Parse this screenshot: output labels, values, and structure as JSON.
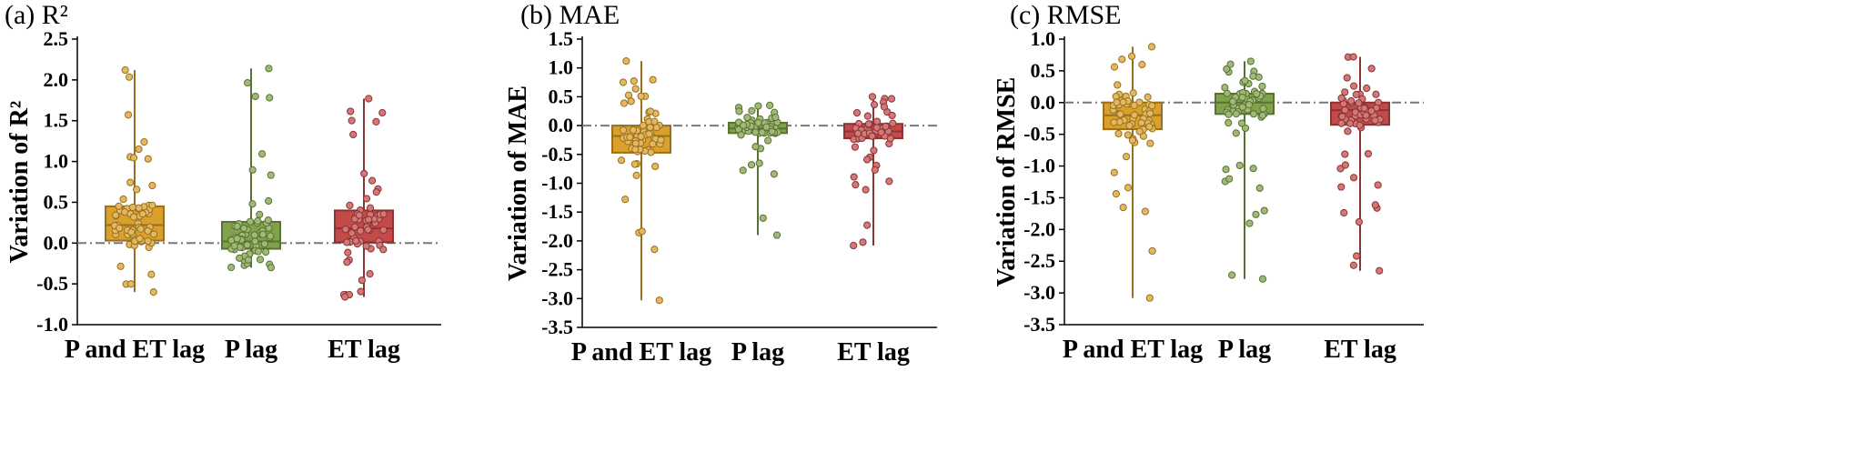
{
  "chart_data": [
    {
      "type": "box",
      "panel_label": "(a) R²",
      "ylabel": "Variation of R²",
      "ylim": [
        -1.0,
        2.5
      ],
      "yticks": [
        "-1.0",
        "-0.5",
        "0.0",
        "0.5",
        "1.0",
        "1.5",
        "2.0",
        "2.5"
      ],
      "categories": [
        "P and ET lag",
        "P lag",
        "ET lag"
      ],
      "reference_line": 0,
      "boxes": [
        {
          "category": "P and ET lag",
          "min": -0.6,
          "q1": 0.03,
          "median": 0.22,
          "q3": 0.45,
          "max": 2.12,
          "color": "#D9A02C"
        },
        {
          "category": "P lag",
          "min": -0.3,
          "q1": -0.07,
          "median": 0.02,
          "q3": 0.26,
          "max": 2.14,
          "color": "#7FA24A"
        },
        {
          "category": "ET lag",
          "min": -0.66,
          "q1": 0.01,
          "median": 0.18,
          "q3": 0.4,
          "max": 1.77,
          "color": "#C44A4A"
        }
      ]
    },
    {
      "type": "box",
      "panel_label": "(b) MAE",
      "ylabel": "Variation of MAE",
      "ylim": [
        -3.5,
        1.5
      ],
      "yticks": [
        "-3.5",
        "-3.0",
        "-2.5",
        "-2.0",
        "-1.5",
        "-1.0",
        "-0.5",
        "0.0",
        "0.5",
        "1.0",
        "1.5"
      ],
      "categories": [
        "P and ET lag",
        "P lag",
        "ET lag"
      ],
      "reference_line": 0,
      "boxes": [
        {
          "category": "P and ET lag",
          "min": -3.03,
          "q1": -0.47,
          "median": -0.18,
          "q3": 0.0,
          "max": 1.12,
          "color": "#D9A02C"
        },
        {
          "category": "P lag",
          "min": -1.9,
          "q1": -0.13,
          "median": -0.05,
          "q3": 0.05,
          "max": 0.35,
          "color": "#7FA24A"
        },
        {
          "category": "ET lag",
          "min": -2.08,
          "q1": -0.22,
          "median": -0.1,
          "q3": 0.03,
          "max": 0.5,
          "color": "#C44A4A"
        }
      ]
    },
    {
      "type": "box",
      "panel_label": "(c) RMSE",
      "ylabel": "Variation of RMSE",
      "ylim": [
        -3.5,
        1.0
      ],
      "yticks": [
        "-3.5",
        "-3.0",
        "-2.5",
        "-2.0",
        "-1.5",
        "-1.0",
        "-0.5",
        "0.0",
        "0.5",
        "1.0"
      ],
      "categories": [
        "P and ET lag",
        "P lag",
        "ET lag"
      ],
      "reference_line": 0,
      "boxes": [
        {
          "category": "P and ET lag",
          "min": -3.08,
          "q1": -0.42,
          "median": -0.2,
          "q3": 0.0,
          "max": 0.88,
          "color": "#D9A02C"
        },
        {
          "category": "P lag",
          "min": -2.78,
          "q1": -0.18,
          "median": 0.0,
          "q3": 0.14,
          "max": 0.65,
          "color": "#7FA24A"
        },
        {
          "category": "ET lag",
          "min": -2.65,
          "q1": -0.35,
          "median": -0.12,
          "q3": 0.0,
          "max": 0.72,
          "color": "#C44A4A"
        }
      ]
    }
  ]
}
